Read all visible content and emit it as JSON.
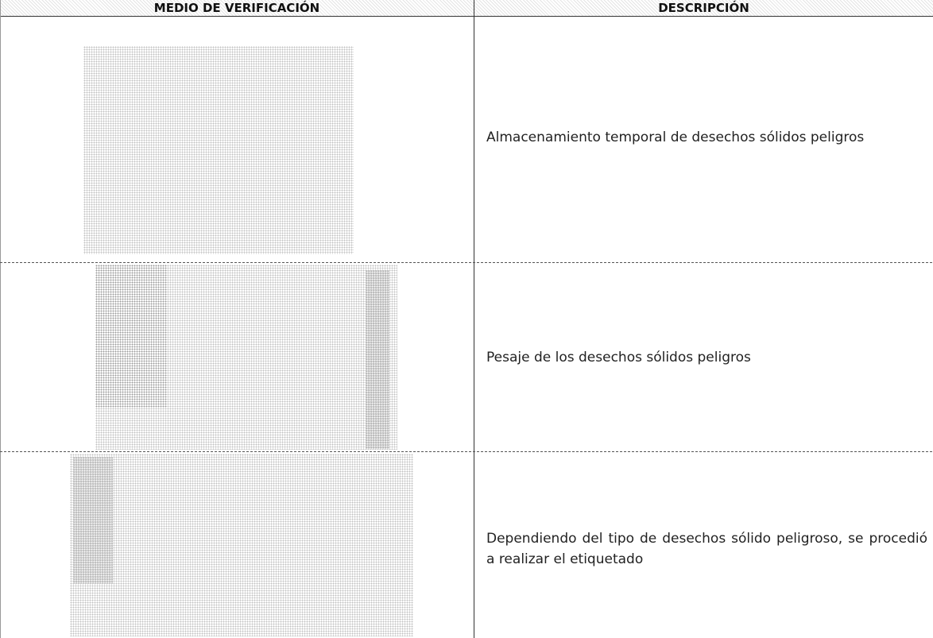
{
  "table": {
    "headers": [
      "MEDIO DE VERIFICACIÓN",
      "DESCRIPCIÓN"
    ],
    "rows": [
      {
        "description": "Almacenamiento temporal de desechos sólidos peligros"
      },
      {
        "description": "Pesaje de los desechos sólidos peligros"
      },
      {
        "description": "Dependiendo del tipo de desechos sólido peligroso, se procedió a realizar el etiquetado"
      }
    ]
  }
}
